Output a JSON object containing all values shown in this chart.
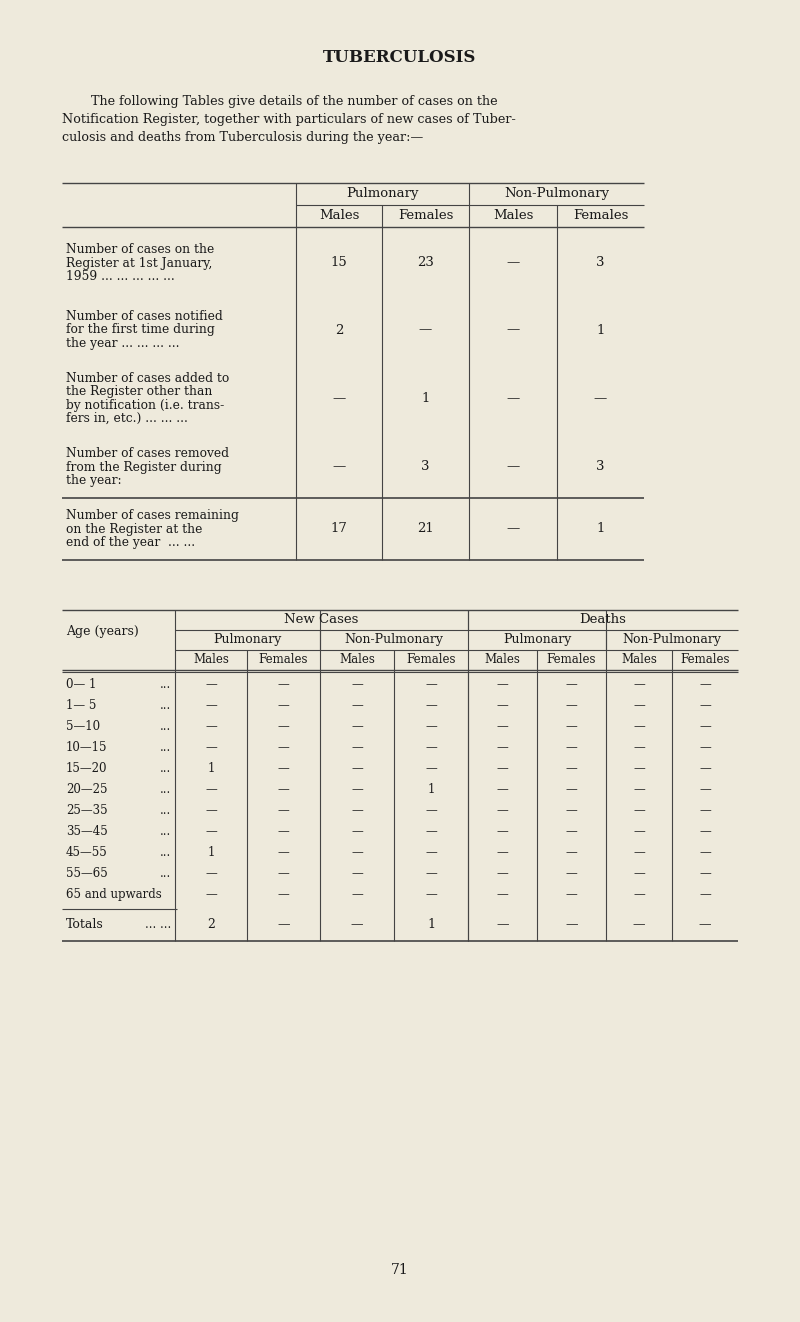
{
  "bg_color": "#eeeadc",
  "text_color": "#1a1a1a",
  "title": "TUBERCULOSIS",
  "intro_line1": "    The following Tables give details of the number of cases on the",
  "intro_line2": "Notification Register, together with particulars of new cases of Tuber-",
  "intro_line3": "culosis and deaths from Tuberculosis during the year:—",
  "table1": {
    "rows": [
      {
        "label_lines": [
          "Number of cases on the",
          "  Register at 1st January,",
          "  1959 ... ... ... ... ..."
        ],
        "values": [
          "15",
          "23",
          "—",
          "3"
        ]
      },
      {
        "label_lines": [
          "Number of cases notified",
          "  for the first time during",
          "  the year ... ... ... ..."
        ],
        "values": [
          "2",
          "—",
          "—",
          "1"
        ]
      },
      {
        "label_lines": [
          "Number of cases added to",
          "  the Register other than",
          "  by notification (i.e. trans-",
          "  fers in, etc.) ... ... ..."
        ],
        "values": [
          "—",
          "1",
          "—",
          "—"
        ]
      },
      {
        "label_lines": [
          "Number of cases removed",
          "  from the Register during",
          "  the year:"
        ],
        "values": [
          "—",
          "3",
          "—",
          "3"
        ]
      }
    ],
    "footer": {
      "label_lines": [
        "Number of cases remaining",
        "  on the Register at the",
        "  end of the year  ... ..."
      ],
      "values": [
        "17",
        "21",
        "—",
        "1"
      ]
    }
  },
  "table2": {
    "age_rows": [
      {
        "age": "0— 1",
        "dots": "...",
        "vals": [
          "—",
          "—",
          "—",
          "—",
          "—",
          "—",
          "—",
          "—"
        ]
      },
      {
        "age": "1— 5",
        "dots": "...",
        "vals": [
          "—",
          "—",
          "—",
          "—",
          "—",
          "—",
          "—",
          "—"
        ]
      },
      {
        "age": "5—10",
        "dots": "...",
        "vals": [
          "—",
          "—",
          "—",
          "—",
          "—",
          "—",
          "—",
          "—"
        ]
      },
      {
        "age": "10—15",
        "dots": "...",
        "vals": [
          "—",
          "—",
          "—",
          "—",
          "—",
          "—",
          "—",
          "—"
        ]
      },
      {
        "age": "15—20",
        "dots": "...",
        "vals": [
          "1",
          "—",
          "—",
          "—",
          "—",
          "—",
          "—",
          "—"
        ]
      },
      {
        "age": "20—25",
        "dots": "...",
        "vals": [
          "—",
          "—",
          "—",
          "1",
          "—",
          "—",
          "—",
          "—"
        ]
      },
      {
        "age": "25—35",
        "dots": "...",
        "vals": [
          "—",
          "—",
          "—",
          "—",
          "—",
          "—",
          "—",
          "—"
        ]
      },
      {
        "age": "35—45",
        "dots": "...",
        "vals": [
          "—",
          "—",
          "—",
          "—",
          "—",
          "—",
          "—",
          "—"
        ]
      },
      {
        "age": "45—55",
        "dots": "...",
        "vals": [
          "1",
          "—",
          "—",
          "—",
          "—",
          "—",
          "—",
          "—"
        ]
      },
      {
        "age": "55—65",
        "dots": "...",
        "vals": [
          "—",
          "—",
          "—",
          "—",
          "—",
          "—",
          "—",
          "—"
        ]
      },
      {
        "age": "65 and upwards",
        "dots": "",
        "vals": [
          "—",
          "—",
          "—",
          "—",
          "—",
          "—",
          "—",
          "—"
        ]
      }
    ],
    "totals": [
      "2",
      "—",
      "—",
      "1",
      "—",
      "—",
      "—",
      "—"
    ]
  },
  "page_number": "71"
}
